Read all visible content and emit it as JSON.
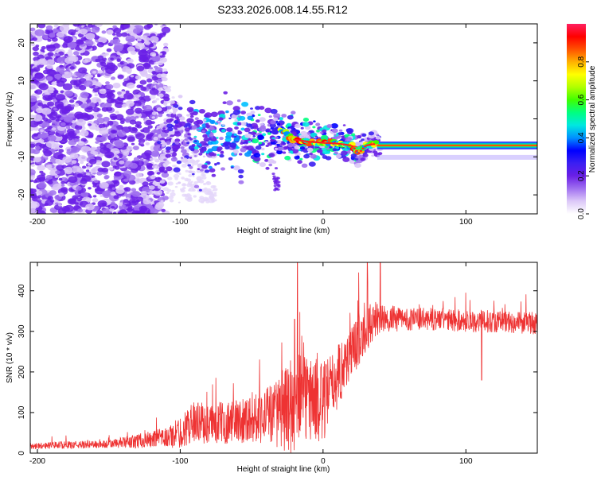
{
  "title": "S233.2026.008.14.55.R12",
  "chart_data": [
    {
      "type": "heatmap",
      "xlabel": "Height of straight line (km)",
      "ylabel": "Frequency (Hz)",
      "xlim": [
        -205,
        150
      ],
      "ylim": [
        -25,
        25
      ],
      "x_ticks": [
        -200,
        -100,
        0,
        100
      ],
      "y_ticks": [
        20,
        10,
        0,
        -10,
        -20
      ],
      "colorbar": {
        "label": "Normalized spectral amplitude",
        "range": [
          0,
          1
        ],
        "ticks": [
          0.0,
          0.2,
          0.4,
          0.6,
          0.8
        ],
        "tick_labels": [
          "0.0",
          "0.2",
          "0.4",
          "0.6",
          "0.8"
        ],
        "colormap": [
          "#ffffff",
          "#dcc8f8",
          "#a070f0",
          "#6a1fe6",
          "#3b1ff2",
          "#0000ff",
          "#0090ff",
          "#00e8e0",
          "#00ff80",
          "#40ff00",
          "#b0ff00",
          "#ffff00",
          "#ffb000",
          "#ff5000",
          "#ff0000",
          "#ff2060"
        ]
      },
      "ridge": {
        "x": [
          -30,
          -20,
          -10,
          0,
          10,
          20,
          25,
          30,
          38,
          40,
          60,
          80,
          100,
          120,
          150
        ],
        "freq": [
          -3,
          -5.5,
          -6,
          -6.3,
          -6.5,
          -7,
          -9,
          -7,
          -6.5,
          -7,
          -7,
          -7,
          -7,
          -7,
          -7
        ]
      }
    },
    {
      "type": "line",
      "xlabel": "Height of straight line (km)",
      "ylabel": "SNR (10 * v/v)",
      "xlim": [
        -205,
        150
      ],
      "ylim": [
        0,
        470
      ],
      "x_ticks": [
        -200,
        -100,
        0,
        100
      ],
      "y_ticks": [
        0,
        100,
        200,
        300,
        400
      ],
      "color": "#ee3333",
      "envelope": {
        "x": [
          -205,
          -150,
          -110,
          -100,
          -90,
          -80,
          -60,
          -40,
          -30,
          -20,
          -10,
          0,
          10,
          20,
          30,
          40,
          60,
          80,
          100,
          120,
          150
        ],
        "mean": [
          18,
          22,
          38,
          50,
          80,
          70,
          80,
          95,
          100,
          120,
          140,
          120,
          190,
          250,
          310,
          330,
          330,
          330,
          325,
          325,
          320
        ],
        "noise": [
          8,
          10,
          25,
          40,
          50,
          50,
          55,
          70,
          90,
          130,
          110,
          100,
          80,
          70,
          60,
          35,
          28,
          28,
          28,
          28,
          28
        ]
      },
      "spikes": [
        {
          "x": -18,
          "value": 470
        },
        {
          "x": -20,
          "value": 330
        },
        {
          "x": 31,
          "value": 470
        },
        {
          "x": 40,
          "value": 480
        },
        {
          "x": 111,
          "value": 395
        }
      ],
      "dips": [
        {
          "x": 111,
          "value": 180
        }
      ]
    }
  ]
}
